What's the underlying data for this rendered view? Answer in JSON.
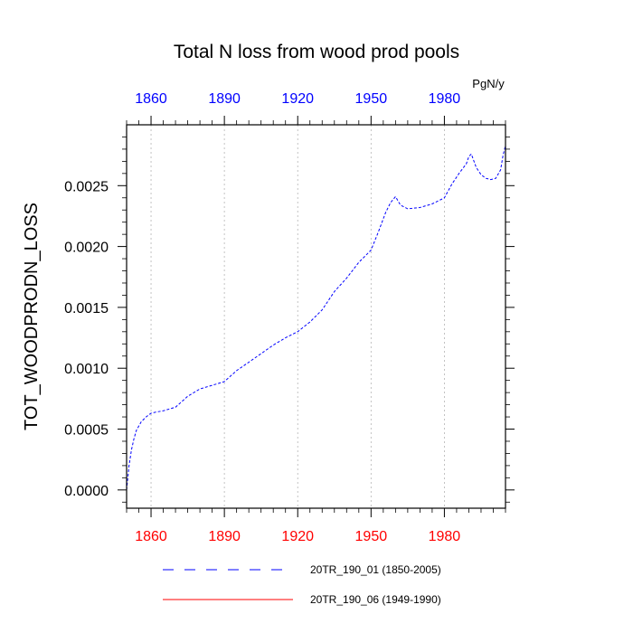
{
  "chart_data": {
    "type": "line",
    "title": "Total N loss from wood prod pools",
    "ylabel": "TOT_WOODPRODN_LOSS",
    "units": "PgN/y",
    "xlim": [
      1850,
      2005
    ],
    "ylim": [
      -0.00015,
      0.003
    ],
    "x_ticks": [
      1860,
      1890,
      1920,
      1950,
      1980
    ],
    "x_tick_labels": [
      "1860",
      "1890",
      "1920",
      "1950",
      "1980"
    ],
    "y_ticks": [
      0.0,
      0.0005,
      0.001,
      0.0015,
      0.002,
      0.0025
    ],
    "y_tick_labels": [
      "0.0000",
      "0.0005",
      "0.0010",
      "0.0015",
      "0.0020",
      "0.0025"
    ],
    "vertical_grid": true,
    "colors": {
      "bottom_axis_labels": "#ff0000",
      "top_axis_labels": "#0000ff"
    },
    "series": [
      {
        "name": "20TR_190_01 (1850-2005)",
        "color": "#0000ff",
        "dash": "dashed",
        "x": [
          1850,
          1851,
          1852,
          1853,
          1854,
          1856,
          1858,
          1860,
          1862,
          1865,
          1870,
          1875,
          1880,
          1885,
          1890,
          1895,
          1900,
          1905,
          1910,
          1915,
          1920,
          1925,
          1930,
          1935,
          1940,
          1945,
          1950,
          1953,
          1956,
          1958,
          1960,
          1962,
          1965,
          1970,
          1975,
          1980,
          1983,
          1986,
          1989,
          1990,
          1991,
          1993,
          1995,
          1997,
          1999,
          2001,
          2003,
          2004,
          2005
        ],
        "y": [
          0.0,
          0.0002,
          0.00033,
          0.00042,
          0.00049,
          0.00056,
          0.0006,
          0.00063,
          0.00064,
          0.00065,
          0.00068,
          0.00077,
          0.00083,
          0.00086,
          0.00089,
          0.00098,
          0.00105,
          0.00112,
          0.00119,
          0.00125,
          0.0013,
          0.00138,
          0.00148,
          0.00163,
          0.00174,
          0.00187,
          0.00197,
          0.00212,
          0.00228,
          0.00236,
          0.00241,
          0.00234,
          0.00231,
          0.00232,
          0.00235,
          0.0024,
          0.00251,
          0.0026,
          0.00268,
          0.00274,
          0.00276,
          0.00265,
          0.00259,
          0.00256,
          0.00255,
          0.00256,
          0.00263,
          0.00275,
          0.00283
        ]
      },
      {
        "name": "20TR_190_06 (1949-1990)",
        "color": "#ff0000",
        "dash": "solid",
        "x": [],
        "y": []
      }
    ]
  }
}
